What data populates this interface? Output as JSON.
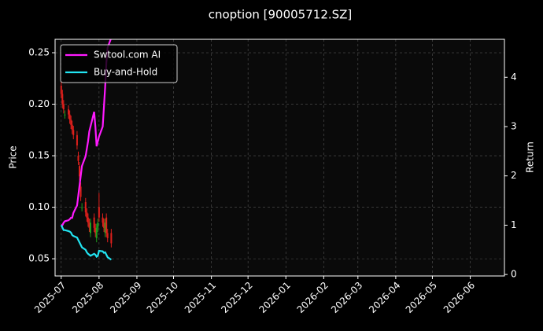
{
  "chart_data": {
    "type": "candlestick",
    "title": "cnoption [90005712.SZ]",
    "ylabel": "Price",
    "y2label": "Return",
    "x": [
      "2025-07-01",
      "2025-07-02",
      "2025-07-03",
      "2025-07-04",
      "2025-07-07",
      "2025-07-08",
      "2025-07-09",
      "2025-07-10",
      "2025-07-11",
      "2025-07-14",
      "2025-07-15",
      "2025-07-16",
      "2025-07-17",
      "2025-07-18",
      "2025-07-21",
      "2025-07-22",
      "2025-07-23",
      "2025-07-24",
      "2025-07-25",
      "2025-07-28",
      "2025-07-29",
      "2025-07-30",
      "2025-07-31",
      "2025-08-01",
      "2025-08-04",
      "2025-08-05",
      "2025-08-06",
      "2025-08-07",
      "2025-08-08",
      "2025-08-11"
    ],
    "open": [
      0.218,
      0.21,
      0.2,
      0.19,
      0.195,
      0.19,
      0.185,
      0.18,
      0.175,
      0.17,
      0.15,
      0.14,
      0.12,
      0.1,
      0.105,
      0.095,
      0.09,
      0.085,
      0.075,
      0.09,
      0.08,
      0.07,
      0.08,
      0.1,
      0.09,
      0.085,
      0.075,
      0.09,
      0.075,
      0.075
    ],
    "high": [
      0.222,
      0.214,
      0.204,
      0.194,
      0.199,
      0.194,
      0.189,
      0.184,
      0.179,
      0.174,
      0.154,
      0.144,
      0.124,
      0.104,
      0.109,
      0.099,
      0.094,
      0.089,
      0.089,
      0.094,
      0.084,
      0.084,
      0.089,
      0.114,
      0.094,
      0.089,
      0.089,
      0.094,
      0.079,
      0.079
    ],
    "low": [
      0.206,
      0.196,
      0.191,
      0.186,
      0.186,
      0.181,
      0.176,
      0.171,
      0.166,
      0.156,
      0.141,
      0.126,
      0.106,
      0.096,
      0.091,
      0.086,
      0.081,
      0.076,
      0.071,
      0.076,
      0.071,
      0.066,
      0.076,
      0.086,
      0.081,
      0.076,
      0.071,
      0.071,
      0.066,
      0.061
    ],
    "close": [
      0.21,
      0.2,
      0.195,
      0.19,
      0.19,
      0.185,
      0.18,
      0.175,
      0.17,
      0.16,
      0.145,
      0.13,
      0.11,
      0.1,
      0.095,
      0.09,
      0.085,
      0.08,
      0.085,
      0.08,
      0.075,
      0.08,
      0.085,
      0.09,
      0.085,
      0.08,
      0.085,
      0.075,
      0.07,
      0.065
    ],
    "up_color": "#1e9e1e",
    "down_color": "#e0201c",
    "series": [
      {
        "name": "Swtool.com AI",
        "color": "#ff1aff",
        "axis": "y2",
        "values": [
          1,
          1,
          1.05,
          1.08,
          1.1,
          1.12,
          1.15,
          1.15,
          1.25,
          1.4,
          1.6,
          1.8,
          2.0,
          2.2,
          2.4,
          2.55,
          2.7,
          2.9,
          3.0,
          3.3,
          3.0,
          2.6,
          2.7,
          2.8,
          3.0,
          3.4,
          3.8,
          4.3,
          4.6,
          4.8
        ]
      },
      {
        "name": "Buy-and-Hold",
        "color": "#22e5f2",
        "axis": "y2",
        "values": [
          1,
          0.95,
          0.9,
          0.9,
          0.88,
          0.87,
          0.85,
          0.8,
          0.78,
          0.75,
          0.7,
          0.65,
          0.6,
          0.55,
          0.5,
          0.45,
          0.42,
          0.4,
          0.38,
          0.42,
          0.4,
          0.36,
          0.38,
          0.48,
          0.47,
          0.44,
          0.45,
          0.4,
          0.35,
          0.3
        ]
      }
    ],
    "xlim": [
      "2025-06-26",
      "2026-06-29"
    ],
    "xticks": [
      {
        "value": "2025-07-01",
        "label": "2025-07"
      },
      {
        "value": "2025-08-01",
        "label": "2025-08"
      },
      {
        "value": "2025-09-01",
        "label": "2025-09"
      },
      {
        "value": "2025-10-01",
        "label": "2025-10"
      },
      {
        "value": "2025-11-01",
        "label": "2025-11"
      },
      {
        "value": "2025-12-01",
        "label": "2025-12"
      },
      {
        "value": "2026-01-01",
        "label": "2026-01"
      },
      {
        "value": "2026-02-01",
        "label": "2026-02"
      },
      {
        "value": "2026-03-01",
        "label": "2026-03"
      },
      {
        "value": "2026-04-01",
        "label": "2026-04"
      },
      {
        "value": "2026-05-01",
        "label": "2026-05"
      },
      {
        "value": "2026-06-01",
        "label": "2026-06"
      }
    ],
    "ylim": [
      0.0333,
      0.263
    ],
    "yticks": [
      0.05,
      {
        "value": 0.1,
        "label": "0.10"
      },
      0.15,
      {
        "value": 0.2,
        "label": "0.20"
      },
      0.25
    ],
    "y2lim": [
      -0.03,
      4.77
    ],
    "y2ticks": [
      0,
      1,
      2,
      3,
      4
    ],
    "grid": true,
    "legend": "upper left"
  }
}
